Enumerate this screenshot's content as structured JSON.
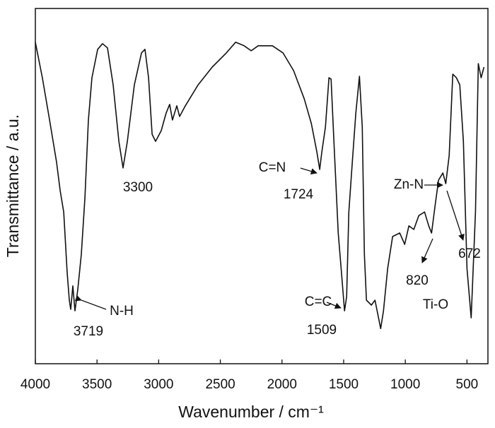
{
  "chart_data": {
    "type": "line",
    "x_label": "Wavenumber / cm⁻¹",
    "y_label": "Transmittance / a.u.",
    "xlim": [
      4000,
      330
    ],
    "ylim": [
      0,
      100
    ],
    "xticks": [
      4000,
      3500,
      3000,
      2500,
      2000,
      1500,
      1000,
      500
    ],
    "color": "#111111",
    "x": [
      4000,
      3943,
      3885,
      3828,
      3799,
      3770,
      3742,
      3725,
      3713,
      3696,
      3679,
      3656,
      3627,
      3598,
      3570,
      3541,
      3495,
      3455,
      3415,
      3369,
      3323,
      3289,
      3254,
      3197,
      3139,
      3111,
      3082,
      3053,
      3025,
      2979,
      2939,
      2911,
      2888,
      2853,
      2830,
      2784,
      2680,
      2566,
      2451,
      2376,
      2307,
      2250,
      2193,
      2078,
      1992,
      1906,
      1820,
      1762,
      1717,
      1694,
      1677,
      1648,
      1619,
      1602,
      1579,
      1544,
      1516,
      1493,
      1476,
      1458,
      1430,
      1401,
      1372,
      1349,
      1332,
      1315,
      1275,
      1246,
      1217,
      1200,
      1177,
      1143,
      1103,
      1045,
      1005,
      971,
      931,
      890,
      844,
      810,
      787,
      758,
      730,
      695,
      672,
      644,
      615,
      586,
      558,
      529,
      500,
      466,
      431,
      408,
      385,
      362
    ],
    "values": [
      90.5,
      80.5,
      68.6,
      56.7,
      48.7,
      42.7,
      25.6,
      17.9,
      15.3,
      21.9,
      14.9,
      20.9,
      30.8,
      46.7,
      68.6,
      80.5,
      88.5,
      90.1,
      88.9,
      78.5,
      62.6,
      55.1,
      62.6,
      78.5,
      87.5,
      88.5,
      80.5,
      64.6,
      62.6,
      65.6,
      70.6,
      73.0,
      68.6,
      72.6,
      69.6,
      72.6,
      78.5,
      83.5,
      87.5,
      90.5,
      89.5,
      88.1,
      89.5,
      89.5,
      87.5,
      82.5,
      74.6,
      67.6,
      59.6,
      54.7,
      59.6,
      66.6,
      80.5,
      80.1,
      62.6,
      36.8,
      24.9,
      14.9,
      18.9,
      42.7,
      56.7,
      70.6,
      80.9,
      66.6,
      30.8,
      17.9,
      16.5,
      17.9,
      12.9,
      9.9,
      14.9,
      26.8,
      35.8,
      36.8,
      33.6,
      38.8,
      37.8,
      41.7,
      42.7,
      38.8,
      36.8,
      44.7,
      51.7,
      53.7,
      50.7,
      58.6,
      81.5,
      80.5,
      78.5,
      62.6,
      26.8,
      12.9,
      42.7,
      84.5,
      80.5,
      83.5
    ],
    "annotations": [
      "3300",
      "3719",
      "N-H",
      "C=N",
      "1724",
      "C=C",
      "1509",
      "Zn-N",
      "672",
      "820",
      "Ti-O"
    ]
  }
}
